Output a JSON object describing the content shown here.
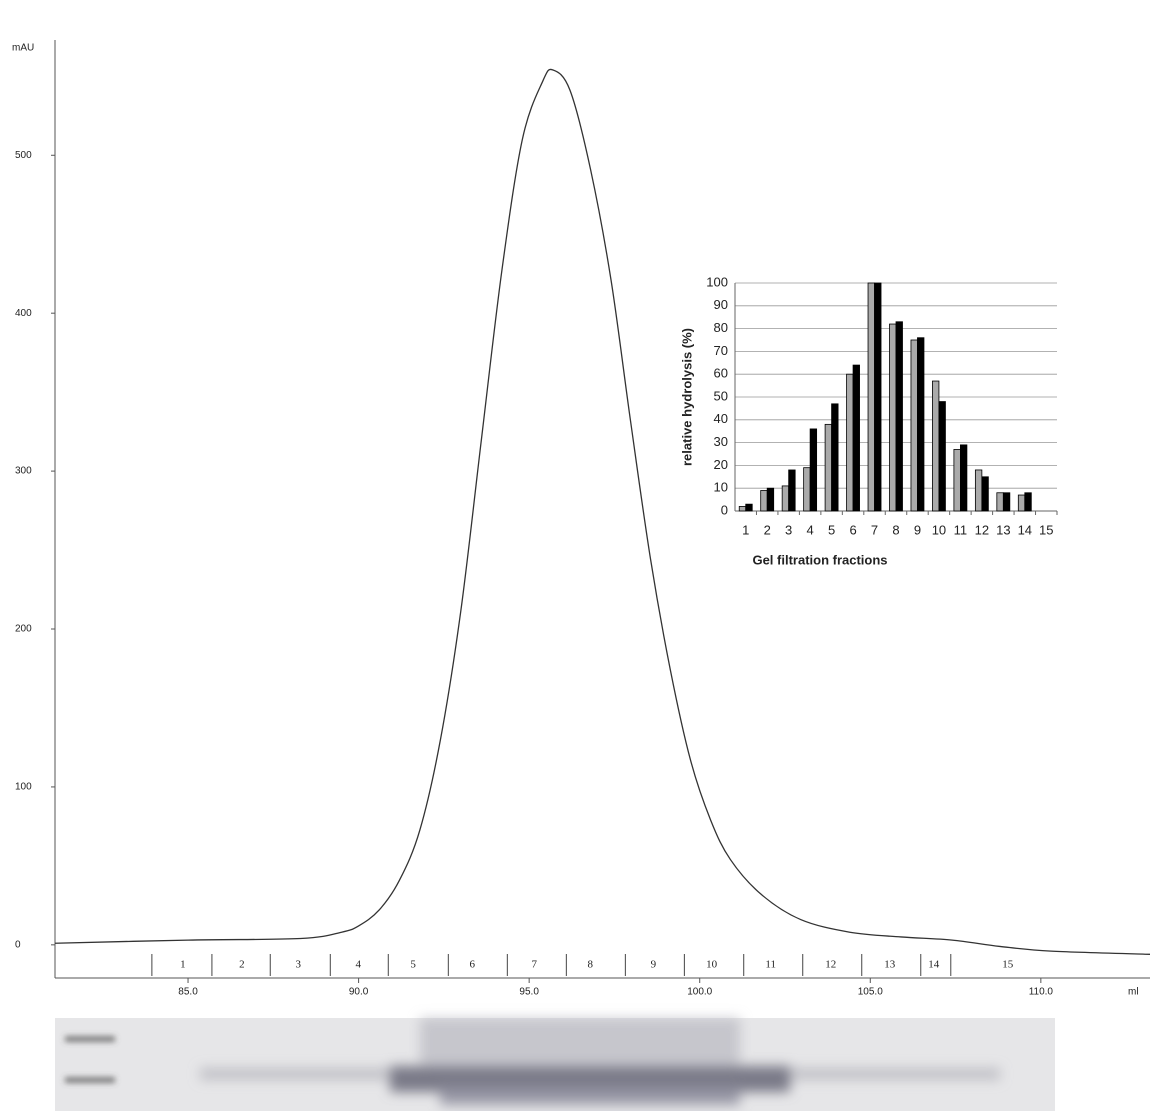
{
  "chart_data": [
    {
      "type": "line",
      "y_label": "mAU",
      "x_label": "ml",
      "color": "#333333",
      "x": [
        81.1,
        85.0,
        88.3,
        89.5,
        90.0,
        90.6,
        91.2,
        91.8,
        92.4,
        93.0,
        93.6,
        94.2,
        94.8,
        95.4,
        95.7,
        96.2,
        96.8,
        97.4,
        97.97,
        98.56,
        99.14,
        99.73,
        100.32,
        100.9,
        101.8,
        102.96,
        104.4,
        105.9,
        107.4,
        108.8,
        110.3,
        113.2
      ],
      "values": [
        1,
        3,
        4,
        8,
        12,
        22,
        41,
        73,
        130,
        212,
        320,
        427,
        510,
        547,
        554,
        541,
        491,
        421,
        332,
        244,
        174,
        117,
        79,
        54,
        32,
        16,
        8,
        5,
        3,
        -1,
        -4,
        -6
      ],
      "xlim": [
        81.1,
        113.2
      ],
      "ylim": [
        -21,
        573
      ],
      "xticks": [
        {
          "value": 85,
          "label": "85.0"
        },
        {
          "value": 90,
          "label": "90.0"
        },
        {
          "value": 95,
          "label": "95.0"
        },
        {
          "value": 100,
          "label": "100.0"
        },
        {
          "value": 105,
          "label": "105.0"
        },
        {
          "value": 110,
          "label": "110.0"
        }
      ],
      "yticks": [
        0,
        100,
        200,
        300,
        400,
        500
      ],
      "fraction_edges": [
        83.94,
        85.7,
        87.41,
        89.17,
        90.87,
        92.63,
        94.36,
        96.09,
        97.82,
        99.55,
        101.29,
        103.02,
        104.75,
        106.48,
        107.36
      ],
      "fractions": [
        {
          "label": "1",
          "x": 84.85
        },
        {
          "label": "2",
          "x": 86.58
        },
        {
          "label": "3",
          "x": 88.23
        },
        {
          "label": "4",
          "x": 89.99
        },
        {
          "label": "5",
          "x": 91.6
        },
        {
          "label": "6",
          "x": 93.33
        },
        {
          "label": "7",
          "x": 95.15
        },
        {
          "label": "8",
          "x": 96.79
        },
        {
          "label": "9",
          "x": 98.64
        },
        {
          "label": "10",
          "x": 100.35
        },
        {
          "label": "11",
          "x": 102.08
        },
        {
          "label": "12",
          "x": 103.84
        },
        {
          "label": "13",
          "x": 105.57
        },
        {
          "label": "14",
          "x": 106.86
        },
        {
          "label": "15",
          "x": 109.03
        }
      ]
    },
    {
      "type": "bar",
      "y_label": "relative hydrolysis (%)",
      "x_label": "Gel filtration fractions",
      "categories": [
        "1",
        "2",
        "3",
        "4",
        "5",
        "6",
        "7",
        "8",
        "9",
        "10",
        "11",
        "12",
        "13",
        "14",
        "15"
      ],
      "series": [
        {
          "color": "#aaaaaa",
          "values": [
            2,
            9,
            11,
            19,
            38,
            60,
            100,
            82,
            75,
            57,
            27,
            18,
            8,
            7,
            null
          ]
        },
        {
          "color": "#000000",
          "values": [
            3,
            10,
            18,
            36,
            47,
            64,
            100,
            83,
            76,
            48,
            29,
            15,
            8,
            8,
            null
          ]
        }
      ],
      "ylim": [
        0,
        100
      ],
      "yticks": [
        0,
        10,
        20,
        30,
        40,
        50,
        60,
        70,
        80,
        90,
        100
      ],
      "grid": true
    }
  ]
}
